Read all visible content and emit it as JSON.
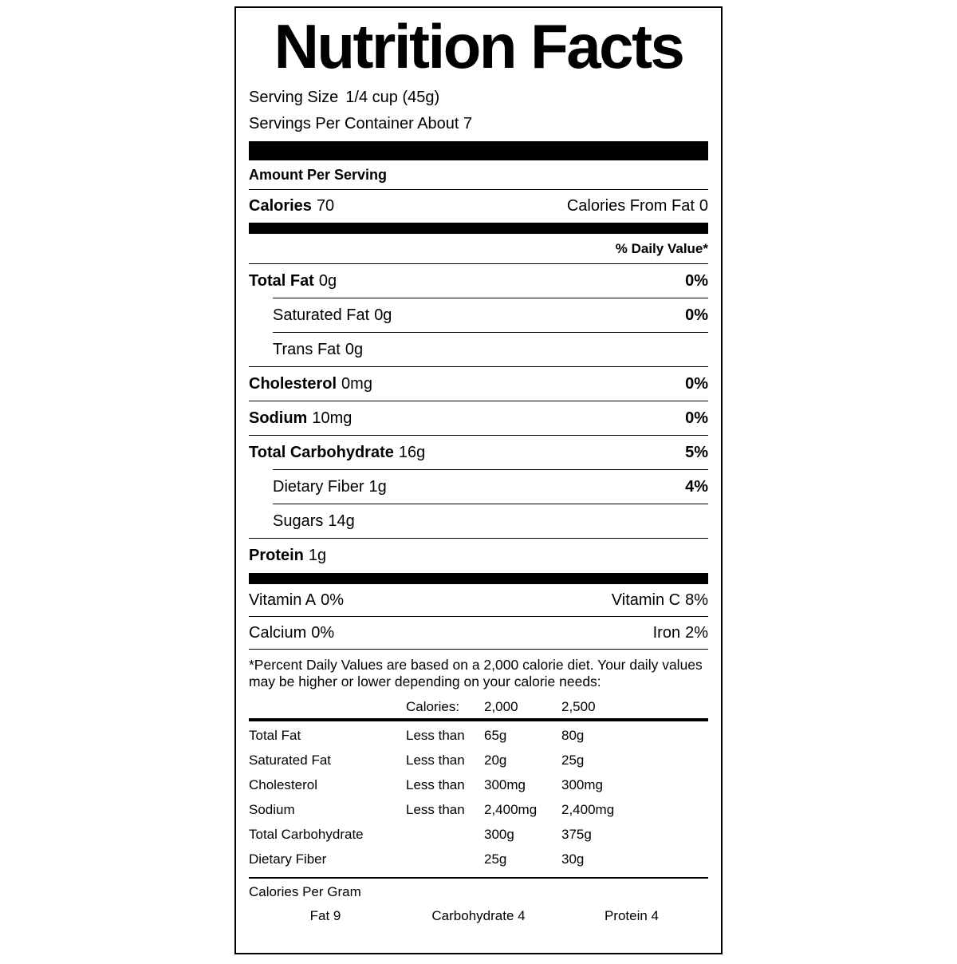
{
  "label": {
    "title": "Nutrition Facts",
    "serving_size_label": "Serving Size",
    "serving_size_value": "1/4 cup (45g)",
    "servings_per_container": "Servings Per Container About 7",
    "amount_per_serving": "Amount Per Serving",
    "calories_label": "Calories",
    "calories_value": "70",
    "calories_from_fat_label": "Calories From Fat",
    "calories_from_fat_value": "0",
    "daily_value_header": "% Daily Value*",
    "nutrients": [
      {
        "name": "Total Fat",
        "amount": "0g",
        "dv": "0%"
      },
      {
        "name": "Saturated Fat",
        "amount": "0g",
        "dv": "0%"
      },
      {
        "name": "Trans Fat",
        "amount": "0g",
        "dv": ""
      },
      {
        "name": "Cholesterol",
        "amount": "0mg",
        "dv": "0%"
      },
      {
        "name": "Sodium",
        "amount": "10mg",
        "dv": "0%"
      },
      {
        "name": "Total Carbohydrate",
        "amount": "16g",
        "dv": "5%"
      },
      {
        "name": "Dietary Fiber",
        "amount": "1g",
        "dv": "4%"
      },
      {
        "name": "Sugars",
        "amount": "14g",
        "dv": ""
      },
      {
        "name": "Protein",
        "amount": "1g",
        "dv": ""
      }
    ],
    "micronutrients": [
      {
        "left_name": "Vitamin A",
        "left_value": "0%",
        "right_name": "Vitamin C",
        "right_value": "8%"
      },
      {
        "left_name": "Calcium",
        "left_value": "0%",
        "right_name": "Iron",
        "right_value": "2%"
      }
    ],
    "footnote": "*Percent Daily Values are based on a 2,000 calorie diet. Your daily values may be higher or lower depending on your calorie needs:",
    "dv_table": {
      "header": {
        "calories_label": "Calories:",
        "col_2000": "2,000",
        "col_2500": "2,500"
      },
      "rows": [
        {
          "name": "Total Fat",
          "cond": "Less than",
          "v2000": "65g",
          "v2500": "80g"
        },
        {
          "name": "Saturated Fat",
          "cond": "Less than",
          "v2000": "20g",
          "v2500": "25g"
        },
        {
          "name": "Cholesterol",
          "cond": "Less than",
          "v2000": "300mg",
          "v2500": "300mg"
        },
        {
          "name": "Sodium",
          "cond": "Less than",
          "v2000": "2,400mg",
          "v2500": "2,400mg"
        },
        {
          "name": "Total Carbohydrate",
          "cond": "",
          "v2000": "300g",
          "v2500": "375g"
        },
        {
          "name": "Dietary Fiber",
          "cond": "",
          "v2000": "25g",
          "v2500": "30g"
        }
      ]
    },
    "calories_per_gram": {
      "title": "Calories Per Gram",
      "fat": "Fat 9",
      "carbohydrate": "Carbohydrate 4",
      "protein": "Protein 4"
    }
  }
}
